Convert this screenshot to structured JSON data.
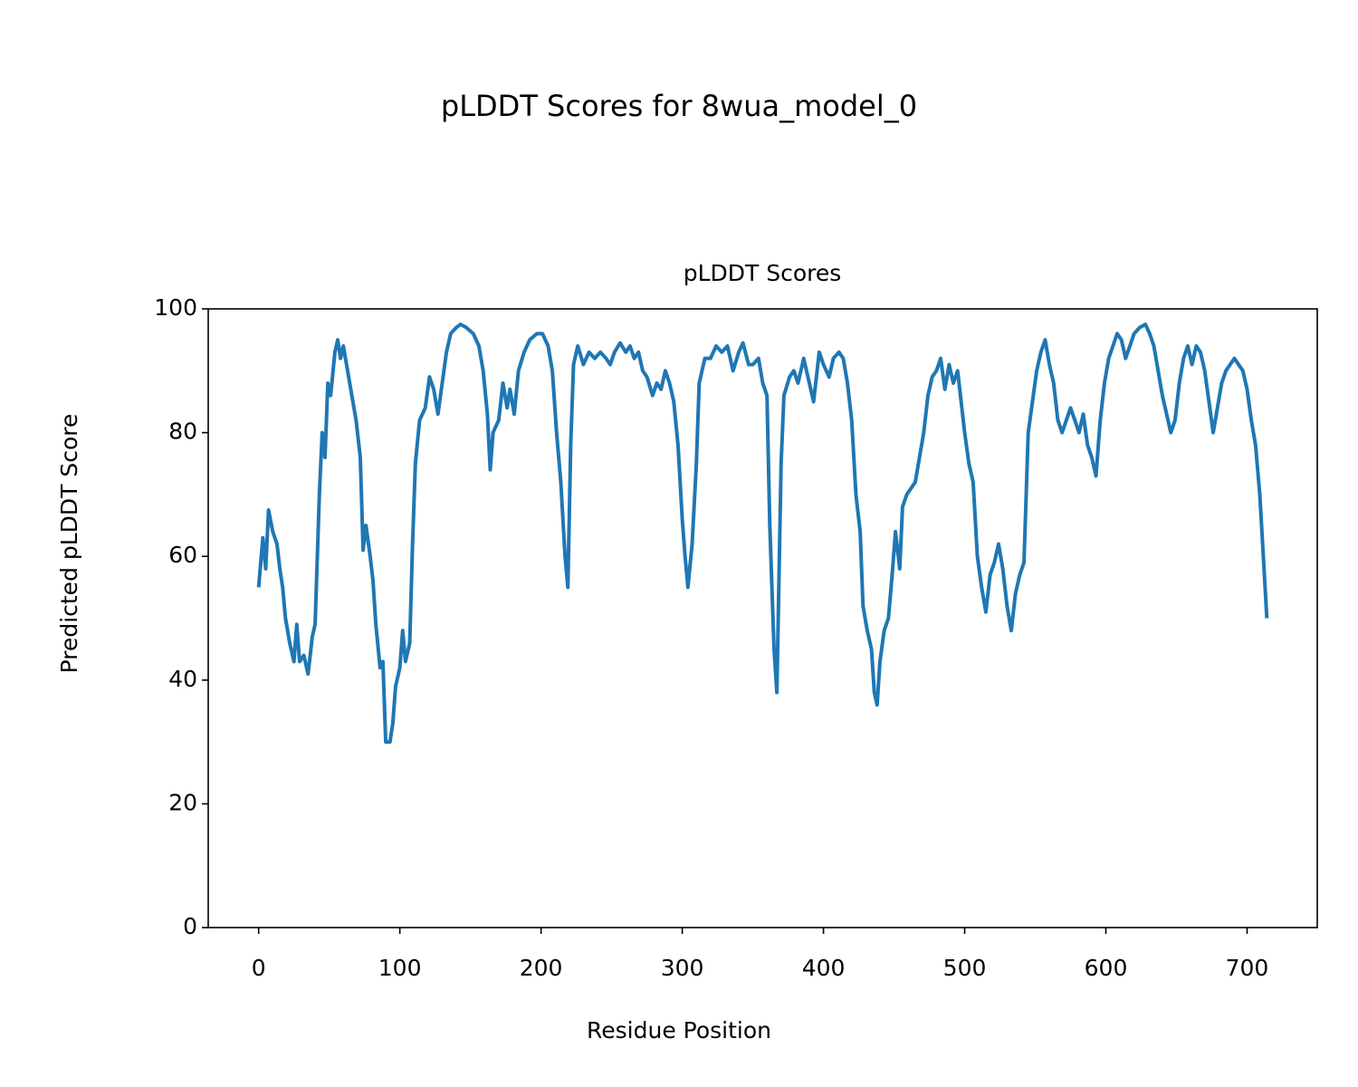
{
  "chart_data": {
    "type": "line",
    "suptitle": "pLDDT Scores for 8wua_model_0",
    "title": "pLDDT Scores",
    "x_label": "Residue Position",
    "y_label": "Predicted pLDDT Score",
    "xlim": [
      -35.7,
      749.7
    ],
    "ylim": [
      0,
      100
    ],
    "xticks": [
      0,
      100,
      200,
      300,
      400,
      500,
      600,
      700
    ],
    "yticks": [
      0,
      20,
      40,
      60,
      80,
      100
    ],
    "grid": false,
    "x": [
      0,
      3,
      5,
      7,
      10,
      13,
      15,
      17,
      19,
      22,
      25,
      27,
      29,
      32,
      35,
      38,
      40,
      43,
      45,
      47,
      49,
      51,
      54,
      56,
      58,
      60,
      63,
      66,
      69,
      72,
      74,
      76,
      79,
      81,
      83,
      86,
      88,
      90,
      93,
      95,
      97,
      100,
      102,
      104,
      107,
      109,
      111,
      114,
      118,
      121,
      124,
      127,
      130,
      133,
      136,
      140,
      143,
      147,
      152,
      156,
      159,
      162,
      164,
      166,
      170,
      173,
      176,
      178,
      181,
      184,
      188,
      192,
      197,
      201,
      205,
      208,
      211,
      214,
      217,
      219,
      221,
      223,
      226,
      230,
      234,
      238,
      242,
      246,
      249,
      252,
      256,
      260,
      263,
      266,
      269,
      272,
      275,
      279,
      282,
      285,
      288,
      291,
      294,
      297,
      300,
      302,
      304,
      307,
      310,
      312,
      316,
      320,
      324,
      328,
      332,
      336,
      340,
      343,
      347,
      350,
      354,
      357,
      360,
      362,
      365,
      367,
      370,
      372,
      376,
      379,
      382,
      386,
      390,
      393,
      397,
      400,
      404,
      407,
      411,
      414,
      417,
      420,
      423,
      426,
      428,
      431,
      434,
      436,
      438,
      440,
      443,
      446,
      449,
      451,
      454,
      456,
      459,
      462,
      465,
      468,
      471,
      474,
      477,
      480,
      483,
      486,
      489,
      492,
      495,
      498,
      500,
      503,
      506,
      509,
      512,
      515,
      518,
      521,
      524,
      527,
      530,
      533,
      536,
      539,
      542,
      545,
      548,
      551,
      554,
      557,
      560,
      563,
      566,
      569,
      572,
      575,
      578,
      581,
      584,
      587,
      590,
      593,
      596,
      599,
      602,
      605,
      608,
      611,
      614,
      617,
      620,
      624,
      628,
      631,
      634,
      637,
      640,
      643,
      646,
      649,
      652,
      655,
      658,
      661,
      664,
      667,
      670,
      673,
      676,
      679,
      682,
      685,
      688,
      691,
      694,
      697,
      700,
      703,
      706,
      709,
      714
    ],
    "series": [
      {
        "color": "#1f77b4",
        "values": [
          55,
          63,
          58,
          67.5,
          64,
          62,
          58,
          55,
          50,
          46,
          43,
          49,
          43,
          44,
          41,
          47,
          49,
          70,
          80,
          76,
          88,
          86,
          93,
          95,
          92,
          94,
          90,
          86,
          82,
          76,
          61,
          65,
          60,
          56,
          49,
          42,
          43,
          30,
          30,
          33,
          39,
          42,
          48,
          43,
          46,
          62,
          75,
          82,
          84,
          89,
          87,
          83,
          88,
          93,
          96,
          97,
          97.5,
          97,
          96,
          94,
          90,
          83,
          74,
          80,
          82,
          88,
          84,
          87,
          83,
          90,
          93,
          95,
          96,
          96,
          94,
          90,
          80,
          72,
          60,
          55,
          78,
          91,
          94,
          91,
          93,
          92,
          93,
          92,
          91,
          93,
          94.5,
          93,
          94,
          92,
          93,
          90,
          89,
          86,
          88,
          87,
          90,
          88,
          85,
          78,
          66,
          60,
          55,
          62,
          75,
          88,
          92,
          92,
          94,
          93,
          94,
          90,
          93,
          94.5,
          91,
          91,
          92,
          88,
          86,
          65,
          45,
          38,
          75,
          86,
          89,
          90,
          88,
          92,
          88,
          85,
          93,
          91,
          89,
          92,
          93,
          92,
          88,
          82,
          70,
          64,
          52,
          48,
          45,
          38,
          36,
          43,
          48,
          50,
          58,
          64,
          58,
          68,
          70,
          71,
          72,
          76,
          80,
          86,
          89,
          90,
          92,
          87,
          91,
          88,
          90,
          84,
          80,
          75,
          72,
          60,
          55,
          51,
          57,
          59,
          62,
          58,
          52,
          48,
          54,
          57,
          59,
          80,
          85,
          90,
          93,
          95,
          91,
          88,
          82,
          80,
          82,
          84,
          82,
          80,
          83,
          78,
          76,
          73,
          82,
          88,
          92,
          94,
          96,
          95,
          92,
          94,
          96,
          97,
          97.5,
          96,
          94,
          90,
          86,
          83,
          80,
          82,
          88,
          92,
          94,
          91,
          94,
          93,
          90,
          85,
          80,
          84,
          88,
          90,
          91,
          92,
          91,
          90,
          87,
          82,
          78,
          70,
          50
        ]
      }
    ]
  }
}
